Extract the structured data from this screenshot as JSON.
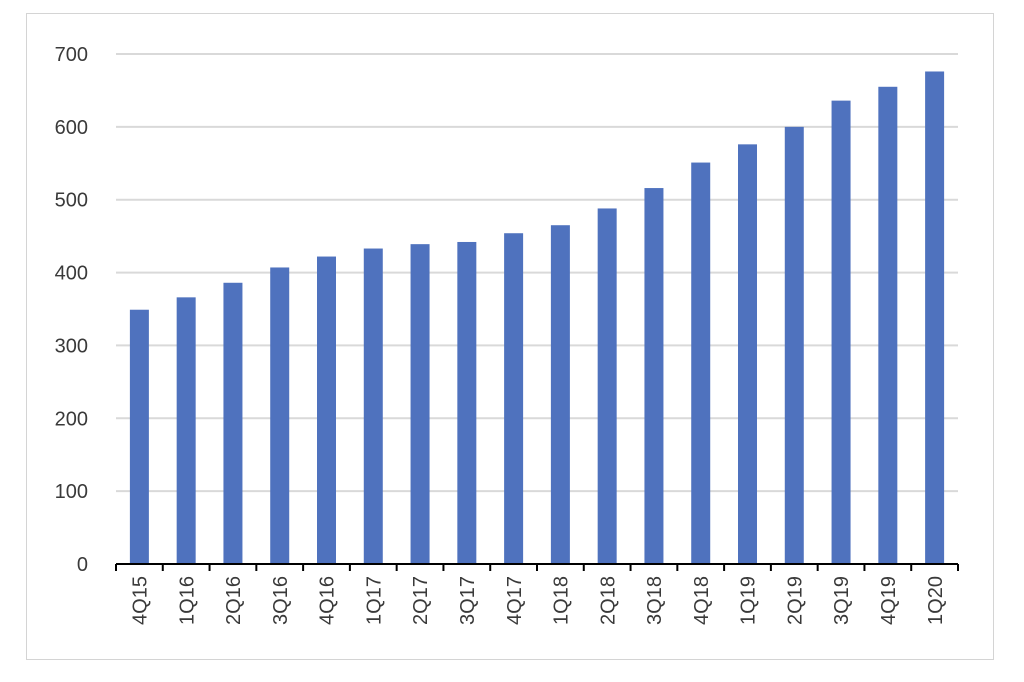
{
  "chart_data": {
    "type": "bar",
    "title": "",
    "xlabel": "",
    "ylabel": "",
    "categories": [
      "4Q15",
      "1Q16",
      "2Q16",
      "3Q16",
      "4Q16",
      "1Q17",
      "2Q17",
      "3Q17",
      "4Q17",
      "1Q18",
      "2Q18",
      "3Q18",
      "4Q18",
      "1Q19",
      "2Q19",
      "3Q19",
      "4Q19",
      "1Q20"
    ],
    "values": [
      349,
      366,
      386,
      407,
      422,
      433,
      439,
      442,
      454,
      465,
      488,
      516,
      551,
      576,
      600,
      636,
      655,
      676
    ],
    "ylim": [
      0,
      700
    ],
    "yticks": [
      "0",
      "100",
      "200",
      "300",
      "400",
      "500",
      "600",
      "700"
    ],
    "grid": true,
    "legend": "none",
    "bar_color": "#4f72be",
    "grid_color": "#d9d9d9",
    "axis_color": "#000000"
  }
}
